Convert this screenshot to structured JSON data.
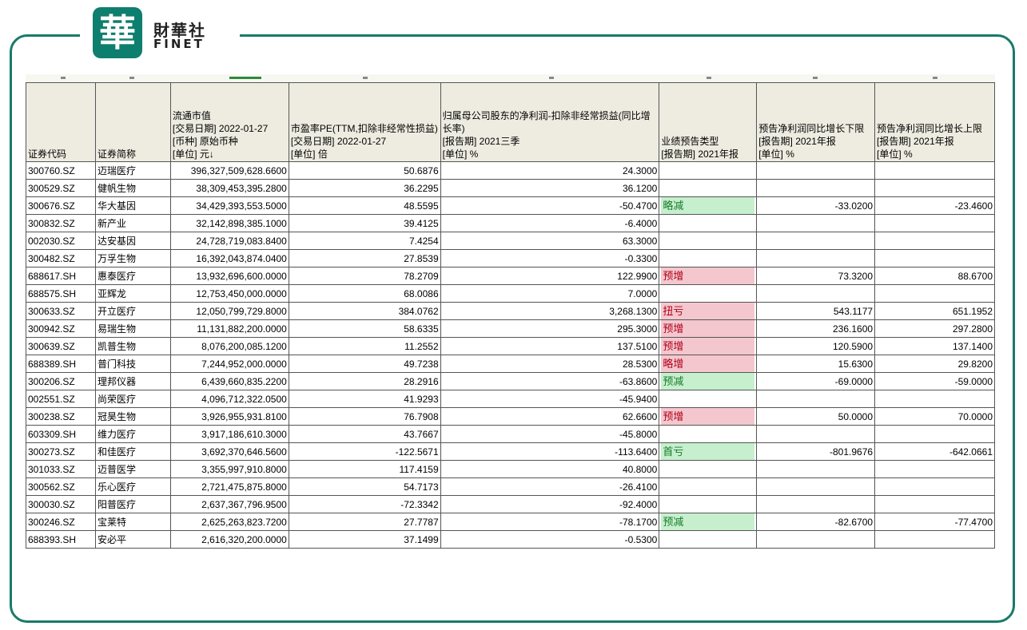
{
  "logo": {
    "glyph": "華",
    "cn": "財華社",
    "en": "FINET"
  },
  "colors": {
    "frame": "#1a7a6a",
    "badge": "#0e7e6e",
    "green_text": "#1aa03a",
    "red_text": "#e0302a",
    "increase_bg": "#f4c7ce",
    "decrease_bg": "#c6efce",
    "header_bg": "#eeece1"
  },
  "table": {
    "headers": [
      [
        "证券代码"
      ],
      [
        "证券简称"
      ],
      [
        "流通市值",
        "[交易日期] 2022-01-27",
        "[币种] 原始币种",
        "[单位] 元↓"
      ],
      [
        "市盈率PE(TTM,扣除非经常性损益)",
        "[交易日期] 2022-01-27",
        "[单位] 倍"
      ],
      [
        "归属母公司股东的净利润-扣除非经常损益(同比增长率)",
        "[报告期] 2021三季",
        "[单位] %"
      ],
      [
        "业绩预告类型",
        "[报告期] 2021年报"
      ],
      [
        "预告净利润同比增长下限",
        "[报告期] 2021年报",
        "[单位] %"
      ],
      [
        "预告净利润同比增长上限",
        "[报告期] 2021年报",
        "[单位] %"
      ]
    ],
    "rows": [
      {
        "code": "300760.SZ",
        "name": "迈瑞医疗",
        "cap": "396,327,509,628.6600",
        "pe": "50.6876",
        "growth": "24.3000",
        "type": "",
        "low": "",
        "high": "",
        "name_color": "",
        "type_style": ""
      },
      {
        "code": "300529.SZ",
        "name": "健帆生物",
        "cap": "38,309,453,395.2800",
        "pe": "36.2295",
        "growth": "36.1200",
        "type": "",
        "low": "",
        "high": "",
        "name_color": "",
        "type_style": ""
      },
      {
        "code": "300676.SZ",
        "name": "华大基因",
        "cap": "34,429,393,553.5000",
        "pe": "48.5595",
        "growth": "-50.4700",
        "type": "略减",
        "low": "-33.0200",
        "high": "-23.4600",
        "name_color": "green",
        "type_style": "down"
      },
      {
        "code": "300832.SZ",
        "name": "新产业",
        "cap": "32,142,898,385.1000",
        "pe": "39.4125",
        "growth": "-6.4000",
        "type": "",
        "low": "",
        "high": "",
        "name_color": "",
        "type_style": ""
      },
      {
        "code": "002030.SZ",
        "name": "达安基因",
        "cap": "24,728,719,083.8400",
        "pe": "7.4254",
        "growth": "63.3000",
        "type": "",
        "low": "",
        "high": "",
        "name_color": "",
        "type_style": ""
      },
      {
        "code": "300482.SZ",
        "name": "万孚生物",
        "cap": "16,392,043,874.0400",
        "pe": "27.8539",
        "growth": "-0.3300",
        "type": "",
        "low": "",
        "high": "",
        "name_color": "",
        "type_style": ""
      },
      {
        "code": "688617.SH",
        "name": "惠泰医疗",
        "cap": "13,932,696,600.0000",
        "pe": "78.2709",
        "growth": "122.9900",
        "type": "预增",
        "low": "73.3200",
        "high": "88.6700",
        "name_color": "red",
        "type_style": "up"
      },
      {
        "code": "688575.SH",
        "name": "亚辉龙",
        "cap": "12,753,450,000.0000",
        "pe": "68.0086",
        "growth": "7.0000",
        "type": "",
        "low": "",
        "high": "",
        "name_color": "",
        "type_style": ""
      },
      {
        "code": "300633.SZ",
        "name": "开立医疗",
        "cap": "12,050,799,729.8000",
        "pe": "384.0762",
        "growth": "3,268.1300",
        "type": "扭亏",
        "low": "543.1177",
        "high": "651.1952",
        "name_color": "red",
        "type_style": "up"
      },
      {
        "code": "300942.SZ",
        "name": "易瑞生物",
        "cap": "11,131,882,200.0000",
        "pe": "58.6335",
        "growth": "295.3000",
        "type": "预增",
        "low": "236.1600",
        "high": "297.2800",
        "name_color": "red",
        "type_style": "up"
      },
      {
        "code": "300639.SZ",
        "name": "凯普生物",
        "cap": "8,076,200,085.1200",
        "pe": "11.2552",
        "growth": "137.5100",
        "type": "预增",
        "low": "120.5900",
        "high": "137.1400",
        "name_color": "red",
        "type_style": "up"
      },
      {
        "code": "688389.SH",
        "name": "普门科技",
        "cap": "7,244,952,000.0000",
        "pe": "49.7238",
        "growth": "28.5300",
        "type": "略增",
        "low": "15.6300",
        "high": "29.8200",
        "name_color": "red",
        "type_style": "up"
      },
      {
        "code": "300206.SZ",
        "name": "理邦仪器",
        "cap": "6,439,660,835.2200",
        "pe": "28.2916",
        "growth": "-63.8600",
        "type": "预减",
        "low": "-69.0000",
        "high": "-59.0000",
        "name_color": "green",
        "type_style": "down"
      },
      {
        "code": "002551.SZ",
        "name": "尚荣医疗",
        "cap": "4,096,712,322.0500",
        "pe": "41.9293",
        "growth": "-45.9400",
        "type": "",
        "low": "",
        "high": "",
        "name_color": "",
        "type_style": ""
      },
      {
        "code": "300238.SZ",
        "name": "冠昊生物",
        "cap": "3,926,955,931.8100",
        "pe": "76.7908",
        "growth": "62.6600",
        "type": "预增",
        "low": "50.0000",
        "high": "70.0000",
        "name_color": "red",
        "type_style": "up"
      },
      {
        "code": "603309.SH",
        "name": "维力医疗",
        "cap": "3,917,186,610.3000",
        "pe": "43.7667",
        "growth": "-45.8000",
        "type": "",
        "low": "",
        "high": "",
        "name_color": "",
        "type_style": ""
      },
      {
        "code": "300273.SZ",
        "name": "和佳医疗",
        "cap": "3,692,370,646.5600",
        "pe": "-122.5671",
        "growth": "-113.6400",
        "type": "首亏",
        "low": "-801.9676",
        "high": "-642.0661",
        "name_color": "green",
        "type_style": "down"
      },
      {
        "code": "301033.SZ",
        "name": "迈普医学",
        "cap": "3,355,997,910.8000",
        "pe": "117.4159",
        "growth": "40.8000",
        "type": "",
        "low": "",
        "high": "",
        "name_color": "",
        "type_style": ""
      },
      {
        "code": "300562.SZ",
        "name": "乐心医疗",
        "cap": "2,721,475,875.8000",
        "pe": "54.7173",
        "growth": "-26.4100",
        "type": "",
        "low": "",
        "high": "",
        "name_color": "",
        "type_style": ""
      },
      {
        "code": "300030.SZ",
        "name": "阳普医疗",
        "cap": "2,637,367,796.9500",
        "pe": "-72.3342",
        "growth": "-92.4000",
        "type": "",
        "low": "",
        "high": "",
        "name_color": "",
        "type_style": ""
      },
      {
        "code": "300246.SZ",
        "name": "宝莱特",
        "cap": "2,625,263,823.7200",
        "pe": "27.7787",
        "growth": "-78.1700",
        "type": "预减",
        "low": "-82.6700",
        "high": "-77.4700",
        "name_color": "green",
        "type_style": "down"
      },
      {
        "code": "688393.SH",
        "name": "安必平",
        "cap": "2,616,320,200.0000",
        "pe": "37.1499",
        "growth": "-0.5300",
        "type": "",
        "low": "",
        "high": "",
        "name_color": "",
        "type_style": ""
      }
    ]
  }
}
